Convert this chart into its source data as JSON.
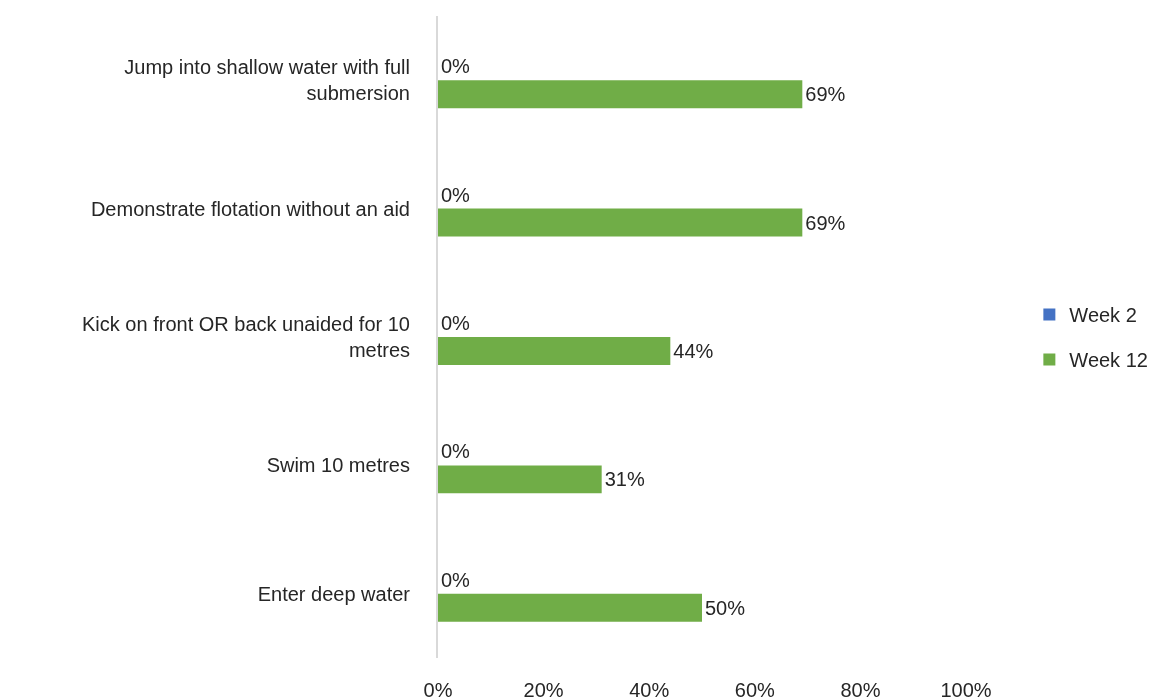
{
  "chart_data": {
    "type": "bar",
    "orientation": "horizontal",
    "categories": [
      "Jump into shallow water with full submersion",
      "Demonstrate flotation without an aid",
      "Kick on front OR back unaided for 10 metres",
      "Swim 10 metres",
      "Enter deep water"
    ],
    "series": [
      {
        "name": "Week 2",
        "color": "#4472c4",
        "values": [
          0,
          0,
          0,
          0,
          0
        ],
        "value_labels": [
          "0%",
          "0%",
          "0%",
          "0%",
          "0%"
        ]
      },
      {
        "name": "Week 12",
        "color": "#70ad47",
        "values": [
          69,
          69,
          44,
          31,
          50
        ],
        "value_labels": [
          "69%",
          "69%",
          "44%",
          "31%",
          "50%"
        ]
      }
    ],
    "xlim": [
      0,
      100
    ],
    "xticks": [
      {
        "value": 0,
        "label": "0%"
      },
      {
        "value": 20,
        "label": "20%"
      },
      {
        "value": 40,
        "label": "40%"
      },
      {
        "value": 60,
        "label": "60%"
      },
      {
        "value": 80,
        "label": "80%"
      },
      {
        "value": 100,
        "label": "100%"
      }
    ],
    "grid": false,
    "legend": "right"
  }
}
